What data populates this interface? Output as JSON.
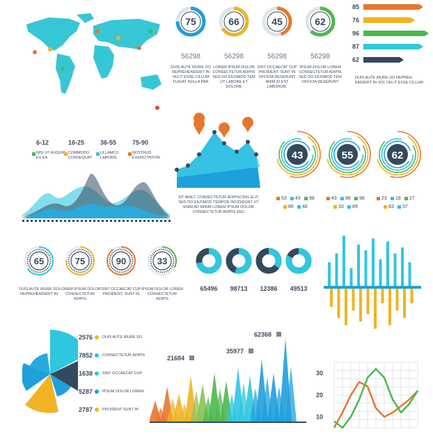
{
  "colors": {
    "dark": "#34495e",
    "cyan": "#2fc6e0",
    "blue": "#1ea0dc",
    "orange": "#e8762c",
    "yellow": "#f0b323",
    "green": "#4db84e",
    "red": "#e0492c"
  },
  "world_map": {
    "age_groups": [
      {
        "range": "6-12",
        "text": "NISI UT AUQUIP EX EA",
        "color": "#4db84e"
      },
      {
        "range": "16-25",
        "text": "COMMODO CONSEQUAT",
        "color": "#f0b323"
      },
      {
        "range": "36-55",
        "text": "ULLAMCO LABORIS",
        "color": "#2fc6e0"
      },
      {
        "range": "75-90",
        "text": "NOSTRUD EXERCITATION",
        "color": "#e8762c"
      }
    ]
  },
  "top_rings": [
    {
      "value": "75",
      "number": "56298",
      "text": "DUIS AUTE IRURE DO REPREHENDERIT IN VELIT ESSE CILLUM FUGIAT NULLA PAR",
      "color": "#1ea0dc"
    },
    {
      "value": "66",
      "number": "56298",
      "text": "LOREM IPSUM DOLOR CONSECTETUR ADIPIS SED DO EIUSMOD TEM UT LABORE ET DOLORE",
      "color": "#f0b323"
    },
    {
      "value": "45",
      "number": "56298",
      "text": "SINT OCCAECAT CUP PROIDENT, SUNT IN OFFICIA DESERUNT ANIM ID EST LABORUM.",
      "color": "#e8762c"
    },
    {
      "value": "62",
      "number": "56298",
      "text": "IPSUM DOLOR LOREM CONSECTETUR ADIPIS SED DO EIUSMOD TEM OFFICIA DESERUNT",
      "color": "#4db84e"
    }
  ],
  "arrow_bars": {
    "bars": [
      {
        "label": "85",
        "color": "#e8762c"
      },
      {
        "label": "76",
        "color": "#f0b323"
      },
      {
        "label": "96",
        "color": "#4db84e"
      },
      {
        "label": "87",
        "color": "#2fc6e0"
      },
      {
        "label": "62",
        "color": "#34495e"
      }
    ],
    "caption": "DUIS AUTE IRURE DO REPREH ENDERIT IN VOL VELIT ESSE CILLUM"
  },
  "mountain": {
    "caption": "SIT AMET, CONSECTETUR ADIPISCING ELIT, SED DO EIUSMOD TEMPOR INCIDIDUNT UT ENIM AD MINIM LOREM IPSUM DOLOR CONSECTETUR ADIPIS SED"
  },
  "big_rings": [
    {
      "value": "43",
      "legend": [
        {
          "v": "53",
          "c": "#e8762c"
        },
        {
          "v": "43",
          "c": "#2fc6e0"
        },
        {
          "v": "98",
          "c": "#4db84e"
        },
        {
          "v": "86",
          "c": "#f0b323"
        },
        {
          "v": "48",
          "c": "#2fc6e0"
        }
      ]
    },
    {
      "value": "55",
      "legend": [
        {
          "v": "43",
          "c": "#e8762c"
        },
        {
          "v": "98",
          "c": "#2fc6e0"
        },
        {
          "v": "98",
          "c": "#4db84e"
        },
        {
          "v": "33",
          "c": "#f0b323"
        },
        {
          "v": "89",
          "c": "#2fc6e0"
        }
      ]
    },
    {
      "value": "62",
      "legend": [
        {
          "v": "23",
          "c": "#e8762c"
        },
        {
          "v": "18",
          "c": "#2fc6e0"
        },
        {
          "v": "27",
          "c": "#4db84e"
        },
        {
          "v": "83",
          "c": "#f0b323"
        },
        {
          "v": "37",
          "c": "#2fc6e0"
        }
      ]
    }
  ],
  "mid_rings": [
    {
      "value": "65",
      "text": "DUIS AUTE IRURE DO REPREHENDERIT IN",
      "color": "#2fc6e0"
    },
    {
      "value": "75",
      "text": "LOREM IPSUM DOLOR CONSECTETUR ADIPIS",
      "color": "#f0b323"
    },
    {
      "value": "90",
      "text": "SINT OCCAECAT CUP PROIDENT, SUNT IN",
      "color": "#e8762c"
    },
    {
      "value": "33",
      "text": "IPSUM DOLOR LOREM CONSECTETUR ADIPIS",
      "color": "#4db84e"
    }
  ],
  "small_donuts": [
    {
      "value": "65496"
    },
    {
      "value": "98713"
    },
    {
      "value": "12386"
    },
    {
      "value": "49513"
    }
  ],
  "pie_legend": [
    {
      "value": "2576",
      "text": "DUIS AUTE IRURE DO",
      "color": "#f0b323"
    },
    {
      "value": "7852",
      "text": "CONSECTETUR ADIPIS",
      "color": "#2fc6e0"
    },
    {
      "value": "1638",
      "text": "SINT OCCAECAT CUP",
      "color": "#2fc6e0"
    },
    {
      "value": "5287",
      "text": "IPSUM DOLOR LOREM",
      "color": "#1ea0dc"
    },
    {
      "value": "2787",
      "text": "PROIDENT SUNT IN",
      "color": "#f0b323"
    }
  ],
  "peak_labels": [
    {
      "value": "21684"
    },
    {
      "value": "35977"
    },
    {
      "value": "62368"
    }
  ],
  "chart_data": [
    {
      "type": "bar",
      "description": "diverging bars",
      "up": [
        40,
        55,
        85,
        30,
        70,
        60,
        80,
        45,
        75,
        55,
        65,
        40
      ],
      "down": [
        25,
        40,
        50,
        30,
        45,
        35,
        55,
        20,
        50,
        30,
        40,
        20
      ]
    },
    {
      "type": "line",
      "ylim": [
        5,
        35
      ],
      "yticks": [
        "30",
        "20",
        "10"
      ],
      "series": [
        {
          "color": "#e8762c",
          "values": [
            5,
            12,
            20,
            26,
            24,
            14,
            10,
            12,
            15,
            18,
            22
          ]
        },
        {
          "color": "#4db84e",
          "values": [
            8,
            5,
            10,
            18,
            28,
            32,
            28,
            18,
            12,
            16,
            22
          ]
        }
      ]
    }
  ]
}
